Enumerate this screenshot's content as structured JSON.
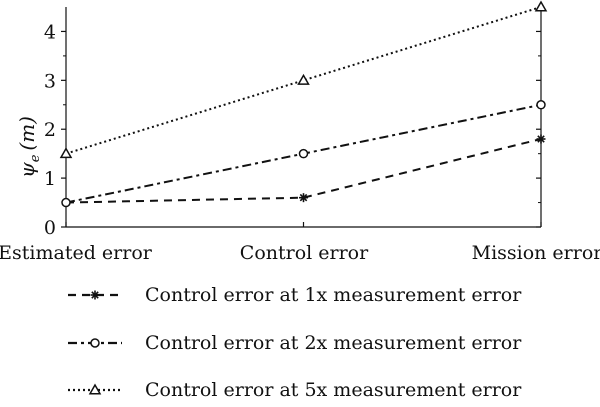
{
  "chart_data": {
    "type": "line",
    "categories": [
      "Estimated error",
      "Control error",
      "Mission error"
    ],
    "ylabel_symbol": "ψ",
    "ylabel_subscript": "e",
    "ylabel_unit": "(m)",
    "ylim": [
      0,
      4.5
    ],
    "yticks": [
      "0",
      "1",
      "2",
      "3",
      "4"
    ],
    "grid": false,
    "legend_position": "bottom",
    "series": [
      {
        "name": "Control error at 1x measurement error",
        "values": [
          0.5,
          0.6,
          1.8
        ],
        "marker": "star",
        "dash": "dashed",
        "color": "#111111"
      },
      {
        "name": "Control error at 2x measurement error",
        "values": [
          0.5,
          1.5,
          2.5
        ],
        "marker": "circle",
        "dash": "dashdot",
        "color": "#111111"
      },
      {
        "name": "Control error at 5x measurement error",
        "values": [
          1.5,
          3.0,
          4.5
        ],
        "marker": "triangle",
        "dash": "dotted",
        "color": "#111111"
      }
    ]
  }
}
